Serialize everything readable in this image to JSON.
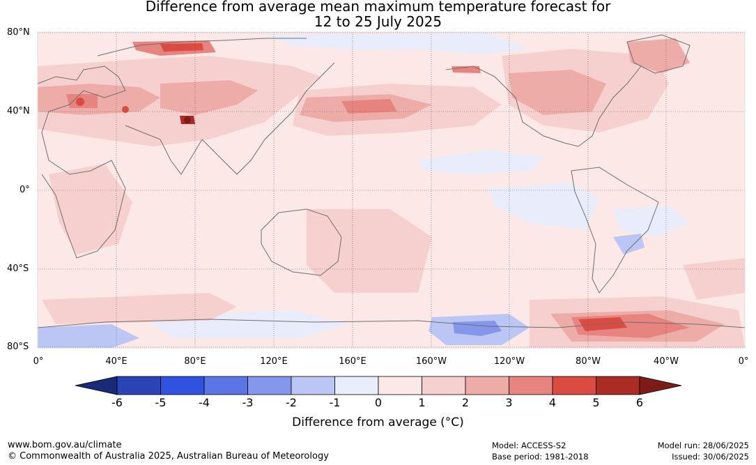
{
  "title": {
    "line1": "Difference from average mean maximum temperature forecast for",
    "line2": "12 to 25 July 2025"
  },
  "map": {
    "lat_labels": [
      "80°N",
      "40°N",
      "0°",
      "40°S",
      "80°S"
    ],
    "lon_labels": [
      "0°",
      "40°E",
      "80°E",
      "120°E",
      "160°E",
      "160°W",
      "120°W",
      "80°W",
      "40°W",
      "0°"
    ],
    "coastline_color": "#6e6e6e",
    "regions": [
      {
        "name": "europe-west-asia-warm",
        "level": 3
      },
      {
        "name": "caspian-hot-spot",
        "level": 4
      },
      {
        "name": "tibet-hot-spot",
        "level": 6
      },
      {
        "name": "siberia-north-warm",
        "level": 5
      },
      {
        "name": "north-pacific-warm-band",
        "level": 3
      },
      {
        "name": "north-pacific-core",
        "level": 4
      },
      {
        "name": "alaska-warm",
        "level": 4
      },
      {
        "name": "canada-warm",
        "level": 3
      },
      {
        "name": "greenland-warm",
        "level": 4
      },
      {
        "name": "south-pacific-cool",
        "level": -3
      },
      {
        "name": "southern-ocean-warm",
        "level": 4
      },
      {
        "name": "antarctic-peninsula-hot",
        "level": 5
      }
    ]
  },
  "colorbar": {
    "ticks": [
      "-6",
      "-5",
      "-4",
      "-3",
      "-2",
      "-1",
      "0",
      "1",
      "2",
      "3",
      "4",
      "5",
      "6"
    ],
    "colors": [
      "#1a2a7a",
      "#2a44b8",
      "#3152e0",
      "#5a75e6",
      "#8497ec",
      "#bcc6f4",
      "#e9edfb",
      "#fce9e7",
      "#f6d0ce",
      "#eeaca8",
      "#e88480",
      "#db4b42",
      "#ab2c25",
      "#7c1b18"
    ],
    "label": "Difference from average (°C)"
  },
  "footer": {
    "website": "www.bom.gov.au/climate",
    "copyright": "© Commonwealth of Australia 2025, Australian Bureau of Meteorology",
    "model": "Model: ACCESS-S2",
    "base_period": "Base period: 1981-2018",
    "model_run": "Model run: 28/06/2025",
    "issued": "Issued: 30/06/2025"
  }
}
